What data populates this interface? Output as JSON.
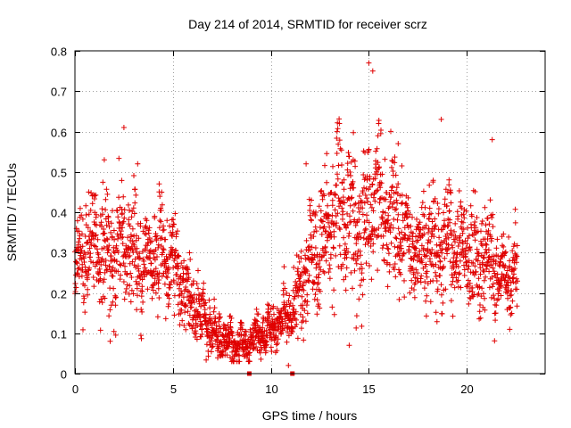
{
  "chart_data": {
    "type": "scatter",
    "title": "Day 214 of 2014, SRMTID for receiver scrz",
    "xlabel": "GPS time / hours",
    "ylabel": "SRMTID / TECUs",
    "xlim": [
      0,
      24
    ],
    "ylim": [
      0,
      0.8
    ],
    "xticks": [
      "0",
      "5",
      "10",
      "15",
      "20"
    ],
    "xtick_values": [
      0,
      5,
      10,
      15,
      20
    ],
    "yticks": [
      "0",
      "0.1",
      "0.2",
      "0.3",
      "0.4",
      "0.5",
      "0.6",
      "0.7",
      "0.8"
    ],
    "ytick_values": [
      0,
      0.1,
      0.2,
      0.3,
      0.4,
      0.5,
      0.6,
      0.7,
      0.8
    ],
    "grid": true,
    "marker": "+",
    "color": "#e00000",
    "envelope_note": "Approximate trend of the dense point cloud (x in hours, y in TECUs); individual points scatter around it",
    "envelope_x": [
      0,
      0.5,
      1,
      1.5,
      2,
      2.5,
      3,
      3.5,
      4,
      4.5,
      5,
      5.5,
      6,
      6.5,
      7,
      7.5,
      8,
      8.5,
      9,
      9.5,
      10,
      10.5,
      11,
      11.5,
      12,
      12.5,
      13,
      13.5,
      14,
      14.5,
      15,
      15.5,
      16,
      16.5,
      17,
      17.5,
      18,
      18.5,
      19,
      19.5,
      20,
      20.5,
      21,
      21.5,
      22,
      22.5
    ],
    "envelope_mid": [
      0.25,
      0.3,
      0.33,
      0.3,
      0.28,
      0.33,
      0.3,
      0.25,
      0.27,
      0.3,
      0.28,
      0.22,
      0.18,
      0.15,
      0.1,
      0.08,
      0.07,
      0.07,
      0.08,
      0.1,
      0.12,
      0.13,
      0.15,
      0.2,
      0.28,
      0.33,
      0.35,
      0.4,
      0.38,
      0.35,
      0.42,
      0.45,
      0.4,
      0.35,
      0.32,
      0.3,
      0.32,
      0.3,
      0.33,
      0.3,
      0.32,
      0.28,
      0.3,
      0.25,
      0.22,
      0.25
    ],
    "envelope_spread": [
      0.09,
      0.11,
      0.12,
      0.13,
      0.13,
      0.13,
      0.12,
      0.11,
      0.11,
      0.11,
      0.1,
      0.09,
      0.07,
      0.06,
      0.05,
      0.04,
      0.04,
      0.04,
      0.04,
      0.04,
      0.05,
      0.06,
      0.07,
      0.1,
      0.12,
      0.13,
      0.14,
      0.15,
      0.16,
      0.16,
      0.16,
      0.15,
      0.13,
      0.12,
      0.11,
      0.11,
      0.11,
      0.11,
      0.12,
      0.11,
      0.11,
      0.11,
      0.11,
      0.1,
      0.09,
      0.09
    ],
    "data_start": 0,
    "data_end": 22.6,
    "n_points": 2400,
    "peaks": [
      {
        "x": 0.7,
        "y": 0.45
      },
      {
        "x": 1.5,
        "y": 0.53
      },
      {
        "x": 2.5,
        "y": 0.61
      },
      {
        "x": 3.2,
        "y": 0.52
      },
      {
        "x": 4.3,
        "y": 0.47
      },
      {
        "x": 15,
        "y": 0.77
      },
      {
        "x": 15.2,
        "y": 0.75
      },
      {
        "x": 15.5,
        "y": 0.62
      },
      {
        "x": 16.5,
        "y": 0.57
      },
      {
        "x": 18.7,
        "y": 0.63
      },
      {
        "x": 21.3,
        "y": 0.58
      },
      {
        "x": 13.5,
        "y": 0.62
      },
      {
        "x": 11.8,
        "y": 0.52
      },
      {
        "x": 8,
        "y": 0.03
      },
      {
        "x": 8.4,
        "y": 0.03
      },
      {
        "x": 10.9,
        "y": 0.02
      },
      {
        "x": 14,
        "y": 0.07
      }
    ],
    "gap_markers_x": [
      8.9,
      11.1
    ]
  }
}
